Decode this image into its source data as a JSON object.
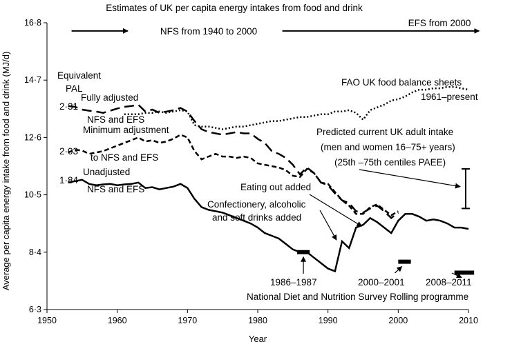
{
  "chart_data": {
    "type": "line",
    "title": "Estimates of UK per capita energy intakes from food and drink",
    "xlabel": "Year",
    "ylabel": "Average per capita energy intake from food and drink (MJ/d)",
    "xlim": [
      1950,
      2010
    ],
    "ylim": [
      6.3,
      16.8
    ],
    "xticks": [
      1950,
      1960,
      1970,
      1980,
      1990,
      2000,
      2010
    ],
    "yticks": [
      6.3,
      8.4,
      10.5,
      12.6,
      14.7,
      16.8
    ],
    "xtick_labels": [
      "1950",
      "1960",
      "1970",
      "1980",
      "1990",
      "2000",
      "2010"
    ],
    "ytick_labels": [
      "6·3",
      "8·4",
      "10·5",
      "12·6",
      "14·7",
      "16·8"
    ],
    "periods": [
      {
        "label": "NFS from 1940 to 2000",
        "x_from": 1953.5,
        "x_to": 2001,
        "y": 16.5
      },
      {
        "label": "EFS from 2000",
        "x_from": 2001,
        "x_to": 2011.5,
        "y": 16.5
      }
    ],
    "pal_header": [
      "Equivalent",
      "PAL"
    ],
    "series": [
      {
        "name": "Fully adjusted NFS and EFS",
        "label_lines": [
          "Fully adjusted",
          "NFS and EFS"
        ],
        "pal": "2·31",
        "style": "dash",
        "x": [
          1953,
          1954,
          1955,
          1956,
          1957,
          1958,
          1959,
          1960,
          1961,
          1962,
          1963,
          1964,
          1965,
          1966,
          1967,
          1968,
          1969,
          1970,
          1971,
          1972,
          1973,
          1974,
          1975,
          1976,
          1977,
          1978,
          1979,
          1980,
          1981,
          1982,
          1983,
          1984,
          1985,
          1986,
          1987,
          1988,
          1989,
          1990,
          1991,
          1992,
          1993,
          1994,
          1995,
          1996,
          1997,
          1998,
          1999,
          2000,
          2001,
          2002,
          2003,
          2004,
          2005,
          2006,
          2007,
          2008,
          2009,
          2010
        ],
        "values": [
          13.75,
          13.72,
          13.62,
          13.58,
          13.55,
          13.5,
          13.58,
          13.66,
          13.72,
          13.75,
          13.8,
          13.55,
          13.62,
          13.5,
          13.55,
          13.6,
          13.68,
          13.55,
          13.2,
          12.9,
          12.8,
          12.75,
          12.7,
          12.75,
          12.8,
          12.75,
          12.75,
          12.55,
          12.4,
          12.1,
          12.0,
          11.85,
          11.6,
          11.25,
          11.5,
          11.3,
          10.95,
          10.85,
          10.55,
          10.3,
          10.2,
          9.9,
          9.85,
          10.0,
          10.1,
          9.9,
          9.65,
          9.85,
          null,
          null,
          null,
          null,
          null,
          null,
          null,
          null,
          null,
          null
        ]
      },
      {
        "name": "Minimum adjustment to NFS and EFS",
        "label_lines": [
          "Minimum adjustment",
          "to NFS and EFS"
        ],
        "pal": "2·03",
        "style": "shortdash",
        "x": [
          1953,
          1954,
          1955,
          1956,
          1957,
          1958,
          1959,
          1960,
          1961,
          1962,
          1963,
          1964,
          1965,
          1966,
          1967,
          1968,
          1969,
          1970,
          1971,
          1972,
          1973,
          1974,
          1975,
          1976,
          1977,
          1978,
          1979,
          1980,
          1981,
          1982,
          1983,
          1984,
          1985,
          1986,
          1987,
          1988,
          1989,
          1990,
          1991,
          1992,
          1993,
          1994,
          1995,
          1996,
          1997,
          1998,
          1999,
          2000,
          2001,
          2002,
          2003,
          2004,
          2005,
          2006,
          2007,
          2008,
          2009,
          2010
        ],
        "values": [
          12.05,
          12.15,
          12.12,
          12.0,
          12.05,
          12.1,
          12.2,
          12.3,
          12.4,
          12.5,
          12.6,
          12.45,
          12.5,
          12.4,
          12.45,
          12.55,
          12.7,
          12.6,
          12.1,
          11.8,
          11.9,
          12.0,
          11.9,
          11.9,
          11.85,
          11.9,
          11.85,
          11.65,
          11.6,
          11.55,
          11.5,
          11.4,
          11.2,
          11.15,
          11.45,
          11.3,
          10.95,
          10.9,
          10.6,
          10.3,
          10.1,
          9.8,
          9.8,
          10.05,
          10.15,
          9.95,
          9.75,
          9.9,
          null,
          null,
          null,
          null,
          null,
          null,
          null,
          null,
          null,
          null
        ]
      },
      {
        "name": "Unadjusted NFS and EFS",
        "label_lines": [
          "Unadjusted",
          "NFS and EFS"
        ],
        "pal": "1·84",
        "style": "solid",
        "x": [
          1953,
          1954,
          1955,
          1956,
          1957,
          1958,
          1959,
          1960,
          1961,
          1962,
          1963,
          1964,
          1965,
          1966,
          1967,
          1968,
          1969,
          1970,
          1971,
          1972,
          1973,
          1974,
          1975,
          1976,
          1977,
          1978,
          1979,
          1980,
          1981,
          1982,
          1983,
          1984,
          1985,
          1986,
          1987,
          1988,
          1989,
          1990,
          1991,
          1992,
          1993,
          1994,
          1995,
          1996,
          1997,
          1998,
          1999,
          2000,
          2001,
          2002,
          2003,
          2004,
          2005,
          2006,
          2007,
          2008,
          2009,
          2010
        ],
        "values": [
          10.95,
          11.0,
          11.05,
          10.9,
          10.85,
          10.88,
          10.9,
          10.85,
          10.88,
          10.9,
          10.95,
          10.75,
          10.78,
          10.7,
          10.75,
          10.8,
          10.9,
          10.75,
          10.35,
          10.05,
          9.95,
          9.9,
          9.85,
          9.75,
          9.65,
          9.55,
          9.45,
          9.3,
          9.1,
          9.0,
          8.9,
          8.7,
          8.5,
          8.4,
          8.4,
          8.2,
          8.0,
          7.8,
          7.7,
          8.8,
          8.55,
          9.3,
          9.4,
          9.65,
          9.5,
          9.3,
          9.1,
          9.55,
          9.8,
          9.8,
          9.7,
          9.55,
          9.6,
          9.55,
          9.45,
          9.3,
          9.3,
          9.25
        ]
      },
      {
        "name": "FAO UK food balance sheets 1961–present",
        "label_lines": [
          "FAO UK food balance sheets",
          "1961–present"
        ],
        "style": "dot",
        "x": [
          1961,
          1962,
          1963,
          1964,
          1965,
          1966,
          1967,
          1968,
          1969,
          1970,
          1971,
          1972,
          1973,
          1974,
          1975,
          1976,
          1977,
          1978,
          1979,
          1980,
          1981,
          1982,
          1983,
          1984,
          1985,
          1986,
          1987,
          1988,
          1989,
          1990,
          1991,
          1992,
          1993,
          1994,
          1995,
          1996,
          1997,
          1998,
          1999,
          2000,
          2001,
          2002,
          2003,
          2004,
          2005,
          2006,
          2007,
          2008,
          2009,
          2010
        ],
        "values": [
          13.45,
          13.45,
          13.45,
          13.5,
          13.5,
          13.55,
          13.5,
          13.55,
          13.6,
          13.55,
          13.05,
          13.0,
          13.0,
          12.95,
          12.9,
          12.95,
          13.0,
          13.0,
          13.05,
          13.1,
          13.15,
          13.2,
          13.2,
          13.25,
          13.3,
          13.35,
          13.35,
          13.4,
          13.45,
          13.45,
          13.55,
          13.55,
          13.6,
          13.5,
          13.25,
          13.6,
          13.7,
          13.8,
          13.95,
          14.0,
          14.1,
          14.25,
          14.35,
          14.35,
          14.4,
          14.4,
          14.45,
          14.45,
          14.4,
          14.35
        ]
      }
    ],
    "predicted": {
      "label_lines": [
        "Predicted current UK adult intake",
        "(men and women 16–75+ years)",
        "(25th –75th centiles PAEE)"
      ],
      "x": 2009.6,
      "low": 10.0,
      "high": 11.45
    },
    "annotations": [
      {
        "name": "eating-out-added",
        "text": "Eating out added",
        "target": [
          1994.8,
          9.35
        ]
      },
      {
        "name": "confectionery-added",
        "text_lines": [
          "Confectionery, alcoholic",
          "and soft drinks added"
        ],
        "target": [
          1991.2,
          8.85
        ]
      }
    ],
    "ndns": {
      "label": "National Diet and Nutrition Survey Rolling programme",
      "points": [
        {
          "label": "1986–1987",
          "x_from": 1985.6,
          "x_to": 1987.4,
          "value": 8.4
        },
        {
          "label": "2000–2001",
          "x_from": 2000.0,
          "x_to": 2001.8,
          "value": 8.05
        },
        {
          "label": "2008–2011",
          "x_from": 2008.0,
          "x_to": 2010.8,
          "value": 7.65
        }
      ]
    }
  }
}
